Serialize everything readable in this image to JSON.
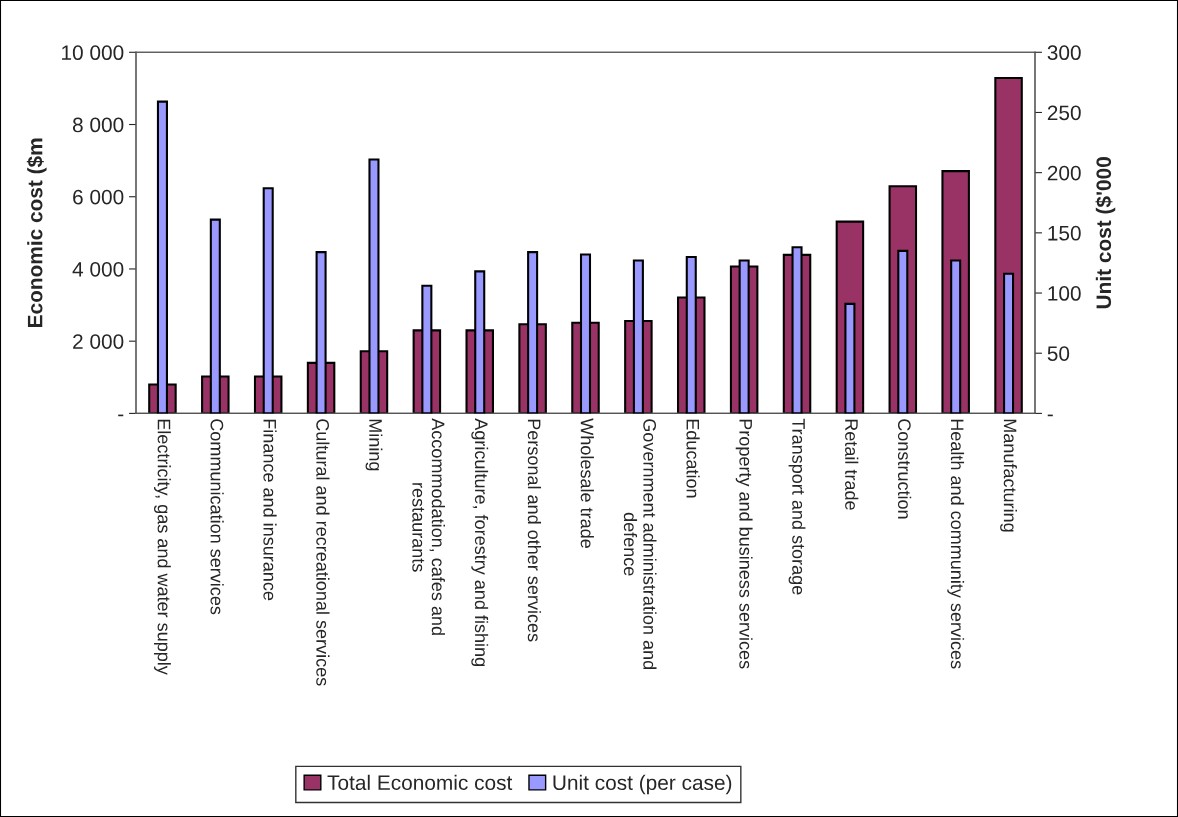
{
  "chart_data": {
    "type": "bar",
    "categories": [
      "Electricity, gas and water supply",
      "Communication services",
      "Finance and insurance",
      "Cultural and recreational services",
      "Mining",
      "Accommodation, cafes and\nrestaurants",
      "Agriculture, forestry and fishing",
      "Personal and other services",
      "Wholesale trade",
      "Government administration and\ndefence",
      "Education",
      "Property and business services",
      "Transport and storage",
      "Retail trade",
      "Construction",
      "Health and community services",
      "Manufacturing"
    ],
    "series": [
      {
        "name": "Total Economic cost",
        "color": "#993366",
        "values": [
          800,
          1020,
          1020,
          1400,
          1720,
          2300,
          2300,
          2470,
          2510,
          2560,
          3210,
          4070,
          4390,
          5310,
          6290,
          6710,
          9290
        ]
      },
      {
        "name": "Unit cost (per case)",
        "color": "#9999ff",
        "axis": "y2",
        "values": [
          259,
          161,
          187,
          134,
          211,
          106,
          118,
          134,
          132,
          127,
          130,
          127,
          138,
          91,
          135,
          127,
          116
        ]
      }
    ],
    "ylabel": "Economic cost ($m",
    "y2label": "Unit cost ($'000",
    "ylim": [
      0,
      10000
    ],
    "yticks": [
      {
        "value": 0,
        "label": "-"
      },
      {
        "value": 2000,
        "label": "2 000"
      },
      {
        "value": 4000,
        "label": "4 000"
      },
      {
        "value": 6000,
        "label": "6 000"
      },
      {
        "value": 8000,
        "label": "8 000"
      },
      {
        "value": 10000,
        "label": "10 000"
      }
    ],
    "y2lim": [
      0,
      300
    ],
    "y2ticks": [
      {
        "value": 0,
        "label": "-"
      },
      50,
      100,
      150,
      200,
      250,
      300
    ],
    "grid": false,
    "legend": "bottom"
  }
}
